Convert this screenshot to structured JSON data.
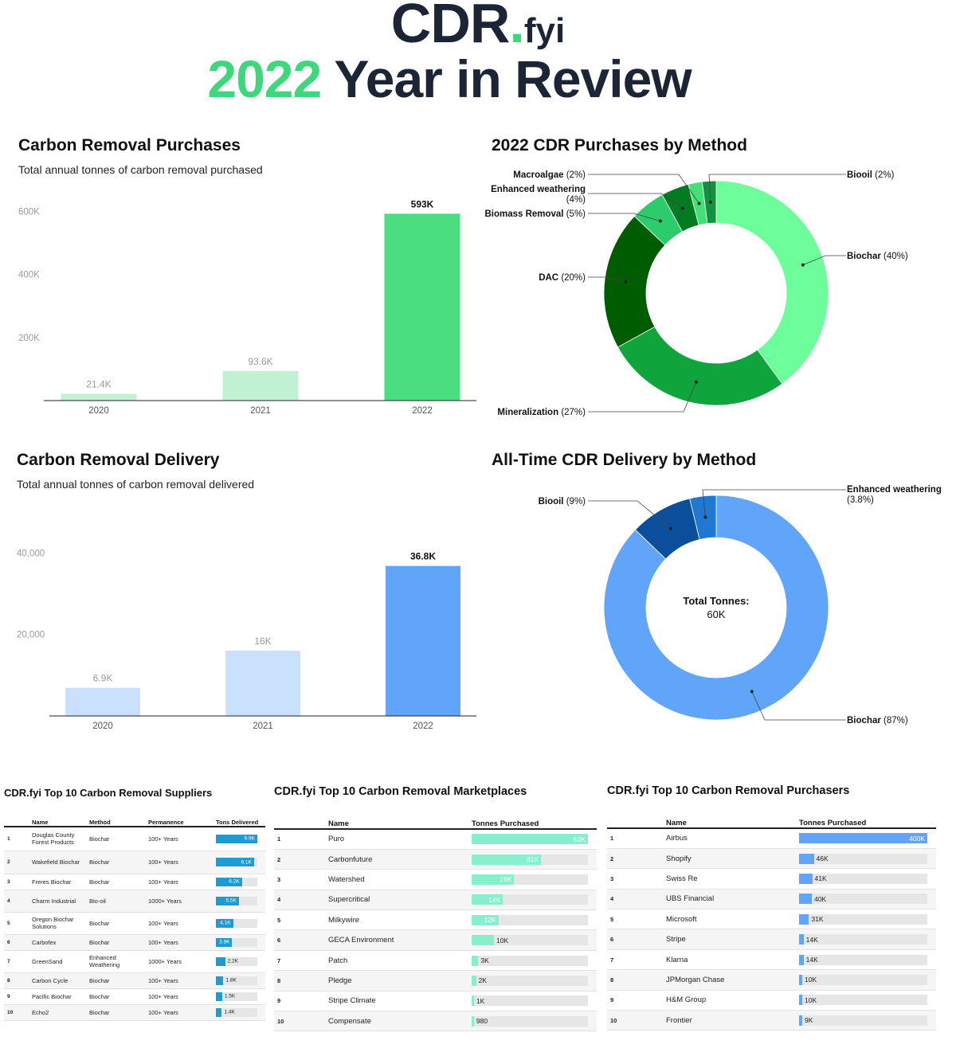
{
  "header": {
    "logo_main": "CDR",
    "logo_dot": ".",
    "logo_suffix": "fyi",
    "year": "2022",
    "title_rest": "Year in Review"
  },
  "colors": {
    "green_accent": "#3ed77e",
    "navy": "#1c2535",
    "purchase_bar_2022": "#4ade80",
    "purchase_bar_prior": "#c2f0d2",
    "delivery_bar_2022": "#60a5fa",
    "delivery_bar_prior": "#c9e1fc",
    "supplier_bar": "#1e9bd2",
    "marketplace_bar": "#86efcd",
    "purchaser_bar": "#60a5fa"
  },
  "chart_data": [
    {
      "id": "purchases",
      "type": "bar",
      "title": "Carbon Removal Purchases",
      "subtitle": "Total annual tonnes of carbon removal purchased",
      "categories": [
        "2020",
        "2021",
        "2022"
      ],
      "values": [
        21400,
        93600,
        593000
      ],
      "data_labels": [
        "21.4K",
        "93.6K",
        "593K"
      ],
      "yticks": [
        "200K",
        "400K",
        "600K"
      ],
      "ytick_values": [
        200000,
        400000,
        600000
      ],
      "ylim": [
        0,
        690000
      ]
    },
    {
      "id": "purchases_by_method",
      "type": "pie",
      "donut": true,
      "title": "2022 CDR Purchases by Method",
      "slices": [
        {
          "label": "Biochar",
          "pct": "(40%)",
          "value": 40,
          "color": "#6dfd9a"
        },
        {
          "label": "Mineralization",
          "pct": "(27%)",
          "value": 27,
          "color": "#0fa53c"
        },
        {
          "label": "DAC",
          "pct": "(20%)",
          "value": 20,
          "color": "#005c00"
        },
        {
          "label": "Biomass Removal",
          "pct": "(5%)",
          "value": 5,
          "color": "#2ccb6c"
        },
        {
          "label": "Enhanced weathering",
          "pct": "(4%)",
          "value": 4,
          "color": "#027b23"
        },
        {
          "label": "Macroalgae",
          "pct": "(2%)",
          "value": 2,
          "color": "#43e078"
        },
        {
          "label": "Biooil",
          "pct": "(2%)",
          "value": 2,
          "color": "#129240"
        }
      ]
    },
    {
      "id": "delivery",
      "type": "bar",
      "title": "Carbon Removal Delivery",
      "subtitle": "Total annual tonnes of carbon removal delivered",
      "categories": [
        "2020",
        "2021",
        "2022"
      ],
      "values": [
        6900,
        16000,
        36800
      ],
      "data_labels": [
        "6.9K",
        "16K",
        "36.8K"
      ],
      "yticks": [
        "20,000",
        "40,000"
      ],
      "ytick_values": [
        20000,
        40000
      ],
      "ylim": [
        0,
        46700
      ]
    },
    {
      "id": "delivery_by_method",
      "type": "pie",
      "donut": true,
      "title": "All-Time CDR Delivery by Method",
      "center_label": "Total Tonnes:",
      "center_value": "60K",
      "slices": [
        {
          "label": "Biochar",
          "pct": "(87%)",
          "value": 87.2,
          "color": "#60a5fa"
        },
        {
          "label": "Biooil",
          "pct": "(9%)",
          "value": 9,
          "color": "#0b4f9c"
        },
        {
          "label": "Enhanced weathering",
          "pct": "(3.8%)",
          "value": 3.8,
          "color": "#1f78d1"
        }
      ]
    },
    {
      "id": "top_suppliers",
      "type": "table",
      "title": "CDR.fyi Top 10 Carbon Removal Suppliers",
      "columns": [
        "Name",
        "Method",
        "Permanence",
        "Tons Delivered"
      ],
      "rows": [
        {
          "rank": "1",
          "name": "Douglas County Forest Products",
          "method": "Biochar",
          "permanence": "100+ Years",
          "value": 9900,
          "label": "9.9K"
        },
        {
          "rank": "2",
          "name": "Wakefield Biochar",
          "method": "Biochar",
          "permanence": "100+ Years",
          "value": 9100,
          "label": "9.1K"
        },
        {
          "rank": "3",
          "name": "Freres Biochar",
          "method": "Biochar",
          "permanence": "100+ Years",
          "value": 6200,
          "label": "6.2K"
        },
        {
          "rank": "4",
          "name": "Charm Industrial",
          "method": "Bio-oil",
          "permanence": "1000+ Years",
          "value": 5500,
          "label": "5.5K"
        },
        {
          "rank": "5",
          "name": "Oregon Biochar Solutions",
          "method": "Biochar",
          "permanence": "100+ Years",
          "value": 4100,
          "label": "4.1K"
        },
        {
          "rank": "6",
          "name": "Carbofex",
          "method": "Biochar",
          "permanence": "100+ Years",
          "value": 3900,
          "label": "3.9K"
        },
        {
          "rank": "7",
          "name": "GreenSand",
          "method": "Enhanced Weathering",
          "permanence": "1000+ Years",
          "value": 2200,
          "label": "2.2K"
        },
        {
          "rank": "8",
          "name": "Carbon Cycle",
          "method": "Biochar",
          "permanence": "100+ Years",
          "value": 1800,
          "label": "1.8K"
        },
        {
          "rank": "9",
          "name": "Pacific Biochar",
          "method": "Biochar",
          "permanence": "100+ Years",
          "value": 1500,
          "label": "1.5K"
        },
        {
          "rank": "10",
          "name": "Echo2",
          "method": "Biochar",
          "permanence": "100+ Years",
          "value": 1400,
          "label": "1.4K"
        }
      ]
    },
    {
      "id": "top_marketplaces",
      "type": "table",
      "title": "CDR.fyi Top 10 Carbon Removal Marketplaces",
      "columns": [
        "Name",
        "Tonnes Purchased"
      ],
      "rows": [
        {
          "rank": "1",
          "name": "Puro",
          "value": 52000,
          "label": "52K"
        },
        {
          "rank": "2",
          "name": "Carbonfuture",
          "value": 31000,
          "label": "31K"
        },
        {
          "rank": "3",
          "name": "Watershed",
          "value": 19000,
          "label": "19K"
        },
        {
          "rank": "4",
          "name": "Supercritical",
          "value": 14000,
          "label": "14K"
        },
        {
          "rank": "5",
          "name": "Milkywire",
          "value": 12000,
          "label": "12K"
        },
        {
          "rank": "6",
          "name": "GECA Environment",
          "value": 10000,
          "label": "10K"
        },
        {
          "rank": "7",
          "name": "Patch",
          "value": 3000,
          "label": "3K"
        },
        {
          "rank": "8",
          "name": "Pledge",
          "value": 2000,
          "label": "2K"
        },
        {
          "rank": "9",
          "name": "Stripe Climate",
          "value": 1000,
          "label": "1K"
        },
        {
          "rank": "10",
          "name": "Compensate",
          "value": 980,
          "label": "980"
        }
      ]
    },
    {
      "id": "top_purchasers",
      "type": "table",
      "title": "CDR.fyi Top 10 Carbon Removal Purchasers",
      "columns": [
        "Name",
        "Tonnes Purchased"
      ],
      "rows": [
        {
          "rank": "1",
          "name": "Airbus",
          "value": 400000,
          "label": "400K"
        },
        {
          "rank": "2",
          "name": "Shopify",
          "value": 46000,
          "label": "46K"
        },
        {
          "rank": "3",
          "name": "Swiss Re",
          "value": 41000,
          "label": "41K"
        },
        {
          "rank": "4",
          "name": "UBS Financial",
          "value": 40000,
          "label": "40K"
        },
        {
          "rank": "5",
          "name": "Microsoft",
          "value": 31000,
          "label": "31K"
        },
        {
          "rank": "6",
          "name": "Stripe",
          "value": 14000,
          "label": "14K"
        },
        {
          "rank": "7",
          "name": "Klarna",
          "value": 14000,
          "label": "14K"
        },
        {
          "rank": "8",
          "name": "JPMorgan Chase",
          "value": 10000,
          "label": "10K"
        },
        {
          "rank": "9",
          "name": "H&M Group",
          "value": 10000,
          "label": "10K"
        },
        {
          "rank": "10",
          "name": "Frontier",
          "value": 9000,
          "label": "9K"
        }
      ]
    }
  ]
}
